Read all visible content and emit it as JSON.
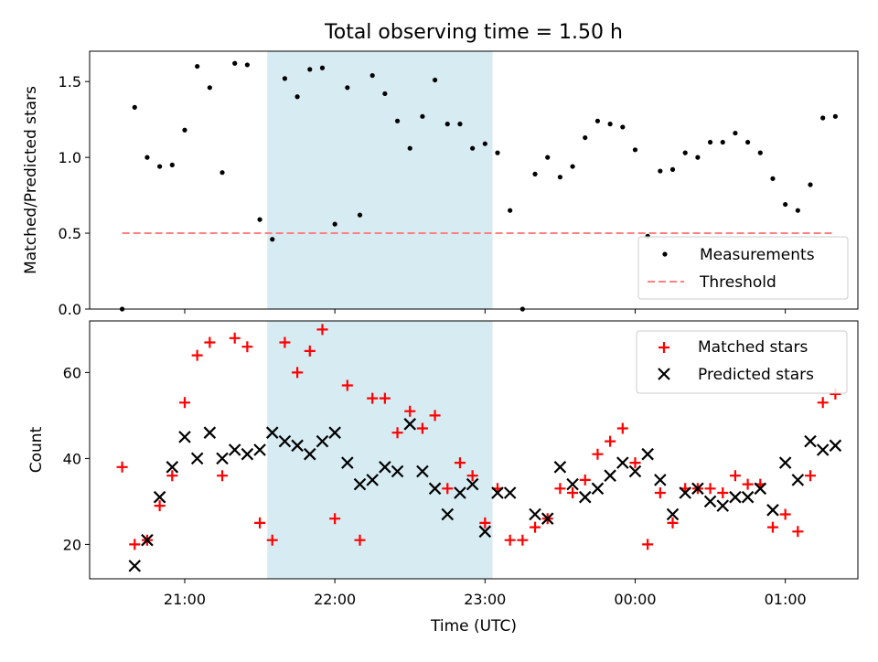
{
  "figure": {
    "title": "Total observing time = 1.50 h",
    "xlabel": "Time (UTC)",
    "x_ticks": [
      "21:00",
      "22:00",
      "23:00",
      "00:00",
      "01:00"
    ],
    "shade_color": "#add8e6"
  },
  "chart_data": [
    {
      "type": "scatter",
      "ylabel": "Matched/Predicted stars",
      "ylim": [
        0,
        1.7
      ],
      "y_ticks": [
        "0.0",
        "0.5",
        "1.0",
        "1.5"
      ],
      "observing_window": {
        "start": "21:33",
        "end": "23:03"
      },
      "legend_placement": "lower right",
      "series": [
        {
          "name": "Measurements",
          "color": "#000000",
          "marker": "dot",
          "points": [
            [
              "20:35",
              0.0
            ],
            [
              "20:40",
              1.33
            ],
            [
              "20:45",
              1.0
            ],
            [
              "20:50",
              0.94
            ],
            [
              "20:55",
              0.95
            ],
            [
              "21:00",
              1.18
            ],
            [
              "21:05",
              1.6
            ],
            [
              "21:10",
              1.46
            ],
            [
              "21:15",
              0.9
            ],
            [
              "21:20",
              1.62
            ],
            [
              "21:25",
              1.61
            ],
            [
              "21:30",
              0.59
            ],
            [
              "21:35",
              0.46
            ],
            [
              "21:40",
              1.52
            ],
            [
              "21:45",
              1.4
            ],
            [
              "21:50",
              1.58
            ],
            [
              "21:55",
              1.59
            ],
            [
              "22:00",
              0.56
            ],
            [
              "22:05",
              1.46
            ],
            [
              "22:10",
              0.62
            ],
            [
              "22:15",
              1.54
            ],
            [
              "22:20",
              1.42
            ],
            [
              "22:25",
              1.24
            ],
            [
              "22:30",
              1.06
            ],
            [
              "22:35",
              1.27
            ],
            [
              "22:40",
              1.51
            ],
            [
              "22:45",
              1.22
            ],
            [
              "22:50",
              1.22
            ],
            [
              "22:55",
              1.06
            ],
            [
              "23:00",
              1.09
            ],
            [
              "23:05",
              1.03
            ],
            [
              "23:10",
              0.65
            ],
            [
              "23:15",
              0.0
            ],
            [
              "23:20",
              0.89
            ],
            [
              "23:25",
              1.0
            ],
            [
              "23:30",
              0.87
            ],
            [
              "23:35",
              0.94
            ],
            [
              "23:40",
              1.13
            ],
            [
              "23:45",
              1.24
            ],
            [
              "23:50",
              1.22
            ],
            [
              "23:55",
              1.2
            ],
            [
              "00:00",
              1.05
            ],
            [
              "00:05",
              0.48
            ],
            [
              "00:10",
              0.91
            ],
            [
              "00:15",
              0.92
            ],
            [
              "00:20",
              1.03
            ],
            [
              "00:25",
              1.0
            ],
            [
              "00:30",
              1.1
            ],
            [
              "00:35",
              1.1
            ],
            [
              "00:40",
              1.16
            ],
            [
              "00:45",
              1.1
            ],
            [
              "00:50",
              1.03
            ],
            [
              "00:55",
              0.86
            ],
            [
              "01:00",
              0.69
            ],
            [
              "01:05",
              0.65
            ],
            [
              "01:10",
              0.82
            ],
            [
              "01:15",
              1.26
            ],
            [
              "01:20",
              1.27
            ]
          ]
        },
        {
          "name": "Threshold",
          "color": "#ff8080",
          "style": "dashed",
          "points": [
            [
              "20:35",
              0.5
            ],
            [
              "01:20",
              0.5
            ]
          ]
        }
      ]
    },
    {
      "type": "scatter",
      "ylabel": "Count",
      "ylim": [
        12,
        72
      ],
      "y_ticks": [
        "20",
        "40",
        "60"
      ],
      "observing_window": {
        "start": "21:33",
        "end": "23:03"
      },
      "legend_placement": "upper right",
      "series": [
        {
          "name": "Matched stars",
          "color": "#ff0000",
          "marker": "plus",
          "points": [
            [
              "20:35",
              38
            ],
            [
              "20:40",
              20
            ],
            [
              "20:45",
              21
            ],
            [
              "20:50",
              29
            ],
            [
              "20:55",
              36
            ],
            [
              "21:00",
              53
            ],
            [
              "21:05",
              64
            ],
            [
              "21:10",
              67
            ],
            [
              "21:15",
              36
            ],
            [
              "21:20",
              68
            ],
            [
              "21:25",
              66
            ],
            [
              "21:30",
              25
            ],
            [
              "21:35",
              21
            ],
            [
              "21:40",
              67
            ],
            [
              "21:45",
              60
            ],
            [
              "21:50",
              65
            ],
            [
              "21:55",
              70
            ],
            [
              "22:00",
              26
            ],
            [
              "22:05",
              57
            ],
            [
              "22:10",
              21
            ],
            [
              "22:15",
              54
            ],
            [
              "22:20",
              54
            ],
            [
              "22:25",
              46
            ],
            [
              "22:30",
              51
            ],
            [
              "22:35",
              47
            ],
            [
              "22:40",
              50
            ],
            [
              "22:45",
              33
            ],
            [
              "22:50",
              39
            ],
            [
              "22:55",
              36
            ],
            [
              "23:00",
              25
            ],
            [
              "23:05",
              33
            ],
            [
              "23:10",
              21
            ],
            [
              "23:15",
              21
            ],
            [
              "23:20",
              24
            ],
            [
              "23:25",
              26
            ],
            [
              "23:30",
              33
            ],
            [
              "23:35",
              32
            ],
            [
              "23:40",
              35
            ],
            [
              "23:45",
              41
            ],
            [
              "23:50",
              44
            ],
            [
              "23:55",
              47
            ],
            [
              "00:00",
              39
            ],
            [
              "00:05",
              20
            ],
            [
              "00:10",
              32
            ],
            [
              "00:15",
              25
            ],
            [
              "00:20",
              33
            ],
            [
              "00:25",
              33
            ],
            [
              "00:30",
              33
            ],
            [
              "00:35",
              32
            ],
            [
              "00:40",
              36
            ],
            [
              "00:45",
              34
            ],
            [
              "00:50",
              34
            ],
            [
              "00:55",
              24
            ],
            [
              "01:00",
              27
            ],
            [
              "01:05",
              23
            ],
            [
              "01:10",
              36
            ],
            [
              "01:15",
              53
            ],
            [
              "01:20",
              55
            ]
          ]
        },
        {
          "name": "Predicted stars",
          "color": "#000000",
          "marker": "x",
          "points": [
            [
              "20:40",
              15
            ],
            [
              "20:45",
              21
            ],
            [
              "20:50",
              31
            ],
            [
              "20:55",
              38
            ],
            [
              "21:00",
              45
            ],
            [
              "21:05",
              40
            ],
            [
              "21:10",
              46
            ],
            [
              "21:15",
              40
            ],
            [
              "21:20",
              42
            ],
            [
              "21:25",
              41
            ],
            [
              "21:30",
              42
            ],
            [
              "21:35",
              46
            ],
            [
              "21:40",
              44
            ],
            [
              "21:45",
              43
            ],
            [
              "21:50",
              41
            ],
            [
              "21:55",
              44
            ],
            [
              "22:00",
              46
            ],
            [
              "22:05",
              39
            ],
            [
              "22:10",
              34
            ],
            [
              "22:15",
              35
            ],
            [
              "22:20",
              38
            ],
            [
              "22:25",
              37
            ],
            [
              "22:30",
              48
            ],
            [
              "22:35",
              37
            ],
            [
              "22:40",
              33
            ],
            [
              "22:45",
              27
            ],
            [
              "22:50",
              32
            ],
            [
              "22:55",
              34
            ],
            [
              "23:00",
              23
            ],
            [
              "23:05",
              32
            ],
            [
              "23:10",
              32
            ],
            [
              "23:20",
              27
            ],
            [
              "23:25",
              26
            ],
            [
              "23:30",
              38
            ],
            [
              "23:35",
              34
            ],
            [
              "23:40",
              31
            ],
            [
              "23:45",
              33
            ],
            [
              "23:50",
              36
            ],
            [
              "23:55",
              39
            ],
            [
              "00:00",
              37
            ],
            [
              "00:05",
              41
            ],
            [
              "00:10",
              35
            ],
            [
              "00:15",
              27
            ],
            [
              "00:20",
              32
            ],
            [
              "00:25",
              33
            ],
            [
              "00:30",
              30
            ],
            [
              "00:35",
              29
            ],
            [
              "00:40",
              31
            ],
            [
              "00:45",
              31
            ],
            [
              "00:50",
              33
            ],
            [
              "00:55",
              28
            ],
            [
              "01:00",
              39
            ],
            [
              "01:05",
              35
            ],
            [
              "01:10",
              44
            ],
            [
              "01:15",
              42
            ],
            [
              "01:20",
              43
            ]
          ]
        }
      ]
    }
  ]
}
